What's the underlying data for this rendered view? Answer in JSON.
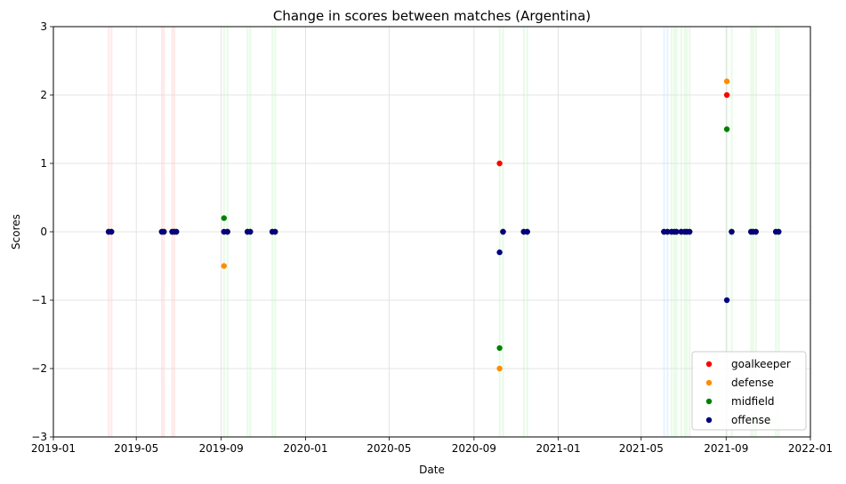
{
  "chart_data": {
    "type": "scatter",
    "title": "Change in scores between matches (Argentina)",
    "xlabel": "Date",
    "ylabel": "Scores",
    "xlim": [
      "2019-01-01",
      "2022-01-01"
    ],
    "ylim": [
      -3,
      3
    ],
    "x_ticks": [
      "2019-01-01",
      "2019-05-01",
      "2019-09-01",
      "2020-01-01",
      "2020-05-01",
      "2020-09-01",
      "2021-01-01",
      "2021-05-01",
      "2021-09-01",
      "2022-01-01"
    ],
    "x_tick_labels": [
      "2019-01",
      "2019-05",
      "2019-09",
      "2020-01",
      "2020-05",
      "2020-09",
      "2021-01",
      "2021-05",
      "2021-09",
      "2022-01"
    ],
    "y_ticks": [
      -3,
      -2,
      -1,
      0,
      1,
      2,
      3
    ],
    "y_tick_labels": [
      "−3",
      "−2",
      "−1",
      "0",
      "1",
      "2",
      "3"
    ],
    "grid": true,
    "legend_position": "bottom-right",
    "match_bands": [
      {
        "date": "2019-03-22",
        "color": "#ff9999"
      },
      {
        "date": "2019-03-26",
        "color": "#ff9999"
      },
      {
        "date": "2019-06-07",
        "color": "#ff9999"
      },
      {
        "date": "2019-06-10",
        "color": "#ff9999"
      },
      {
        "date": "2019-06-22",
        "color": "#ff9999"
      },
      {
        "date": "2019-06-25",
        "color": "#ff9999"
      },
      {
        "date": "2019-09-05",
        "color": "#99ee99"
      },
      {
        "date": "2019-09-10",
        "color": "#99ee99"
      },
      {
        "date": "2019-10-09",
        "color": "#99ee99"
      },
      {
        "date": "2019-10-13",
        "color": "#99ee99"
      },
      {
        "date": "2019-11-14",
        "color": "#99ee99"
      },
      {
        "date": "2019-11-18",
        "color": "#99ee99"
      },
      {
        "date": "2020-10-08",
        "color": "#99ee99"
      },
      {
        "date": "2020-10-13",
        "color": "#99ee99"
      },
      {
        "date": "2020-11-12",
        "color": "#99ee99"
      },
      {
        "date": "2020-11-17",
        "color": "#99ee99"
      },
      {
        "date": "2021-06-03",
        "color": "#99ccff"
      },
      {
        "date": "2021-06-08",
        "color": "#99ccff"
      },
      {
        "date": "2021-06-14",
        "color": "#99ee99"
      },
      {
        "date": "2021-06-18",
        "color": "#99ee99"
      },
      {
        "date": "2021-06-21",
        "color": "#99ee99"
      },
      {
        "date": "2021-06-28",
        "color": "#99ee99"
      },
      {
        "date": "2021-07-03",
        "color": "#99ee99"
      },
      {
        "date": "2021-07-06",
        "color": "#99ee99"
      },
      {
        "date": "2021-07-10",
        "color": "#99ee99"
      },
      {
        "date": "2021-09-02",
        "color": "#99ee99"
      },
      {
        "date": "2021-09-09",
        "color": "#99ee99"
      },
      {
        "date": "2021-10-07",
        "color": "#99ee99"
      },
      {
        "date": "2021-10-10",
        "color": "#99ee99"
      },
      {
        "date": "2021-10-14",
        "color": "#99ee99"
      },
      {
        "date": "2021-11-12",
        "color": "#99ee99"
      },
      {
        "date": "2021-11-16",
        "color": "#99ee99"
      }
    ],
    "series": [
      {
        "name": "goalkeeper",
        "color": "#ff0000",
        "points": [
          {
            "x": "2019-03-22",
            "y": 0
          },
          {
            "x": "2019-03-26",
            "y": 0
          },
          {
            "x": "2019-06-07",
            "y": 0
          },
          {
            "x": "2019-06-10",
            "y": 0
          },
          {
            "x": "2019-06-22",
            "y": 0
          },
          {
            "x": "2019-06-25",
            "y": 0
          },
          {
            "x": "2019-06-28",
            "y": 0
          },
          {
            "x": "2019-09-05",
            "y": 0
          },
          {
            "x": "2019-09-10",
            "y": 0
          },
          {
            "x": "2019-10-09",
            "y": 0
          },
          {
            "x": "2019-10-13",
            "y": 0
          },
          {
            "x": "2019-11-14",
            "y": 0
          },
          {
            "x": "2019-11-18",
            "y": 0
          },
          {
            "x": "2020-10-08",
            "y": 1
          },
          {
            "x": "2020-10-13",
            "y": 0
          },
          {
            "x": "2020-11-12",
            "y": 0
          },
          {
            "x": "2020-11-17",
            "y": 0
          },
          {
            "x": "2021-06-03",
            "y": 0
          },
          {
            "x": "2021-06-08",
            "y": 0
          },
          {
            "x": "2021-06-14",
            "y": 0
          },
          {
            "x": "2021-06-18",
            "y": 0
          },
          {
            "x": "2021-06-21",
            "y": 0
          },
          {
            "x": "2021-06-28",
            "y": 0
          },
          {
            "x": "2021-07-03",
            "y": 0
          },
          {
            "x": "2021-07-06",
            "y": 0
          },
          {
            "x": "2021-07-10",
            "y": 0
          },
          {
            "x": "2021-09-02",
            "y": 2
          },
          {
            "x": "2021-09-09",
            "y": 0
          },
          {
            "x": "2021-10-07",
            "y": 0
          },
          {
            "x": "2021-10-10",
            "y": 0
          },
          {
            "x": "2021-10-14",
            "y": 0
          },
          {
            "x": "2021-11-12",
            "y": 0
          },
          {
            "x": "2021-11-16",
            "y": 0
          }
        ]
      },
      {
        "name": "defense",
        "color": "#ff8c00",
        "points": [
          {
            "x": "2019-03-22",
            "y": 0
          },
          {
            "x": "2019-03-26",
            "y": 0
          },
          {
            "x": "2019-06-07",
            "y": 0
          },
          {
            "x": "2019-06-10",
            "y": 0
          },
          {
            "x": "2019-06-22",
            "y": 0
          },
          {
            "x": "2019-06-25",
            "y": 0
          },
          {
            "x": "2019-06-28",
            "y": 0
          },
          {
            "x": "2019-09-05",
            "y": -0.5
          },
          {
            "x": "2019-09-10",
            "y": 0
          },
          {
            "x": "2019-10-09",
            "y": 0
          },
          {
            "x": "2019-10-13",
            "y": 0
          },
          {
            "x": "2019-11-14",
            "y": 0
          },
          {
            "x": "2019-11-18",
            "y": 0
          },
          {
            "x": "2020-10-08",
            "y": -2
          },
          {
            "x": "2020-10-13",
            "y": 0
          },
          {
            "x": "2020-11-12",
            "y": 0
          },
          {
            "x": "2020-11-17",
            "y": 0
          },
          {
            "x": "2021-06-03",
            "y": 0
          },
          {
            "x": "2021-06-08",
            "y": 0
          },
          {
            "x": "2021-06-14",
            "y": 0
          },
          {
            "x": "2021-06-18",
            "y": 0
          },
          {
            "x": "2021-06-21",
            "y": 0
          },
          {
            "x": "2021-06-28",
            "y": 0
          },
          {
            "x": "2021-07-03",
            "y": 0
          },
          {
            "x": "2021-07-06",
            "y": 0
          },
          {
            "x": "2021-07-10",
            "y": 0
          },
          {
            "x": "2021-09-02",
            "y": 2.2
          },
          {
            "x": "2021-09-09",
            "y": 0
          },
          {
            "x": "2021-10-07",
            "y": 0
          },
          {
            "x": "2021-10-10",
            "y": 0
          },
          {
            "x": "2021-10-14",
            "y": 0
          },
          {
            "x": "2021-11-12",
            "y": 0
          },
          {
            "x": "2021-11-16",
            "y": 0
          }
        ]
      },
      {
        "name": "midfield",
        "color": "#008000",
        "points": [
          {
            "x": "2019-03-22",
            "y": 0
          },
          {
            "x": "2019-03-26",
            "y": 0
          },
          {
            "x": "2019-06-07",
            "y": 0
          },
          {
            "x": "2019-06-10",
            "y": 0
          },
          {
            "x": "2019-06-22",
            "y": 0
          },
          {
            "x": "2019-06-25",
            "y": 0
          },
          {
            "x": "2019-06-28",
            "y": 0
          },
          {
            "x": "2019-09-05",
            "y": 0.2
          },
          {
            "x": "2019-09-10",
            "y": 0
          },
          {
            "x": "2019-10-09",
            "y": 0
          },
          {
            "x": "2019-10-13",
            "y": 0
          },
          {
            "x": "2019-11-14",
            "y": 0
          },
          {
            "x": "2019-11-18",
            "y": 0
          },
          {
            "x": "2020-10-08",
            "y": -1.7
          },
          {
            "x": "2020-10-13",
            "y": 0
          },
          {
            "x": "2020-11-12",
            "y": 0
          },
          {
            "x": "2020-11-17",
            "y": 0
          },
          {
            "x": "2021-06-03",
            "y": 0
          },
          {
            "x": "2021-06-08",
            "y": 0
          },
          {
            "x": "2021-06-14",
            "y": 0
          },
          {
            "x": "2021-06-18",
            "y": 0
          },
          {
            "x": "2021-06-21",
            "y": 0
          },
          {
            "x": "2021-06-28",
            "y": 0
          },
          {
            "x": "2021-07-03",
            "y": 0
          },
          {
            "x": "2021-07-06",
            "y": 0
          },
          {
            "x": "2021-07-10",
            "y": 0
          },
          {
            "x": "2021-09-02",
            "y": 1.5
          },
          {
            "x": "2021-09-09",
            "y": 0
          },
          {
            "x": "2021-10-07",
            "y": 0
          },
          {
            "x": "2021-10-10",
            "y": 0
          },
          {
            "x": "2021-10-14",
            "y": 0
          },
          {
            "x": "2021-11-12",
            "y": 0
          },
          {
            "x": "2021-11-16",
            "y": 0
          }
        ]
      },
      {
        "name": "offense",
        "color": "#000080",
        "points": [
          {
            "x": "2019-03-22",
            "y": 0
          },
          {
            "x": "2019-03-26",
            "y": 0
          },
          {
            "x": "2019-06-07",
            "y": 0
          },
          {
            "x": "2019-06-10",
            "y": 0
          },
          {
            "x": "2019-06-22",
            "y": 0
          },
          {
            "x": "2019-06-25",
            "y": 0
          },
          {
            "x": "2019-06-28",
            "y": 0
          },
          {
            "x": "2019-09-05",
            "y": 0
          },
          {
            "x": "2019-09-10",
            "y": 0
          },
          {
            "x": "2019-10-09",
            "y": 0
          },
          {
            "x": "2019-10-13",
            "y": 0
          },
          {
            "x": "2019-11-14",
            "y": 0
          },
          {
            "x": "2019-11-18",
            "y": 0
          },
          {
            "x": "2020-10-08",
            "y": -0.3
          },
          {
            "x": "2020-10-13",
            "y": 0
          },
          {
            "x": "2020-11-12",
            "y": 0
          },
          {
            "x": "2020-11-17",
            "y": 0
          },
          {
            "x": "2021-06-03",
            "y": 0
          },
          {
            "x": "2021-06-08",
            "y": 0
          },
          {
            "x": "2021-06-14",
            "y": 0
          },
          {
            "x": "2021-06-18",
            "y": 0
          },
          {
            "x": "2021-06-21",
            "y": 0
          },
          {
            "x": "2021-06-28",
            "y": 0
          },
          {
            "x": "2021-07-03",
            "y": 0
          },
          {
            "x": "2021-07-06",
            "y": 0
          },
          {
            "x": "2021-07-10",
            "y": 0
          },
          {
            "x": "2021-09-02",
            "y": -1
          },
          {
            "x": "2021-09-09",
            "y": 0
          },
          {
            "x": "2021-10-07",
            "y": 0
          },
          {
            "x": "2021-10-10",
            "y": 0
          },
          {
            "x": "2021-10-14",
            "y": 0
          },
          {
            "x": "2021-11-12",
            "y": 0
          },
          {
            "x": "2021-11-16",
            "y": 0
          }
        ]
      }
    ]
  }
}
